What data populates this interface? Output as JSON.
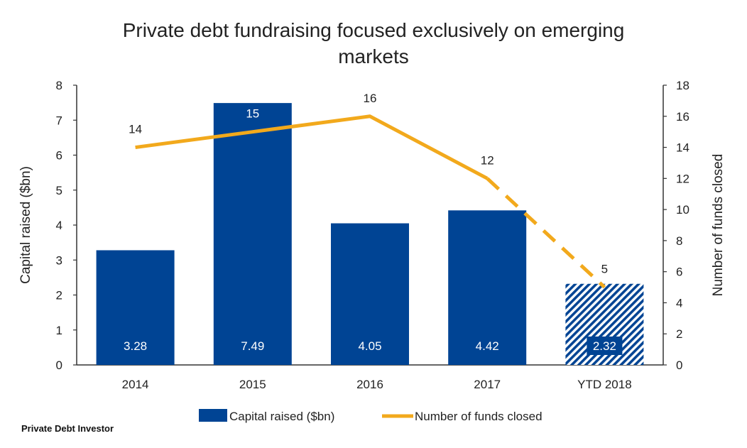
{
  "chart_data": {
    "type": "bar",
    "title_lines": [
      "Private debt fundraising focused exclusively on emerging",
      "markets"
    ],
    "categories": [
      "2014",
      "2015",
      "2016",
      "2017",
      "YTD 2018"
    ],
    "series": [
      {
        "name": "Capital raised ($bn)",
        "type": "bar",
        "axis": "left",
        "values": [
          3.28,
          7.49,
          4.05,
          4.42,
          2.32
        ],
        "labels": [
          "3.28",
          "7.49",
          "4.05",
          "4.42",
          "2.32"
        ],
        "color": "#004494",
        "hatched_index": 4
      },
      {
        "name": "Number of funds closed",
        "type": "line",
        "axis": "right",
        "values": [
          14,
          15,
          16,
          12,
          5
        ],
        "labels": [
          "14",
          "15",
          "16",
          "12",
          "5"
        ],
        "color": "#f2a91c",
        "dashed_from_index": 3
      }
    ],
    "ylabel": "Capital raised ($bn)",
    "y2label": "Number of funds closed",
    "ylim": [
      0,
      8
    ],
    "y2lim": [
      0,
      18
    ],
    "yticks": [
      "0",
      "1",
      "2",
      "3",
      "4",
      "5",
      "6",
      "7",
      "8"
    ],
    "y2ticks": [
      "0",
      "2",
      "4",
      "6",
      "8",
      "10",
      "12",
      "14",
      "16",
      "18"
    ],
    "legend_position": "bottom",
    "grid": false
  },
  "source": "Private Debt Investor"
}
